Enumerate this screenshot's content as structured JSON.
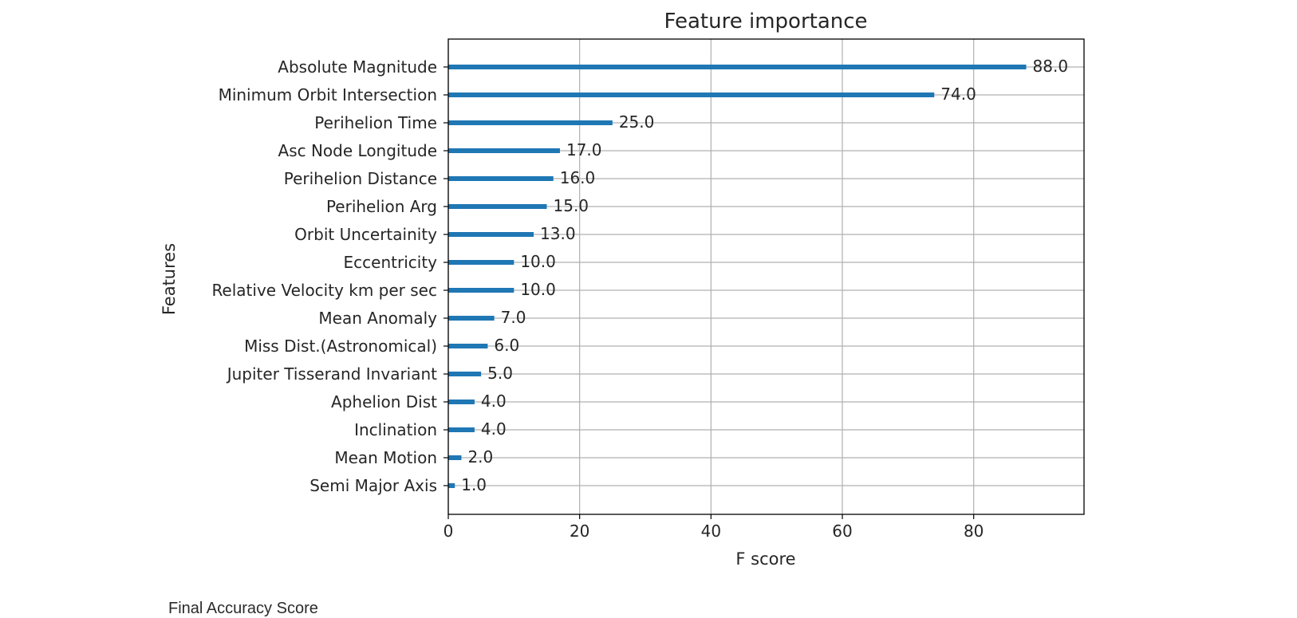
{
  "chart_data": {
    "type": "bar",
    "orientation": "horizontal",
    "title": "Feature importance",
    "xlabel": "F score",
    "ylabel": "Features",
    "categories": [
      "Absolute Magnitude",
      "Minimum Orbit Intersection",
      "Perihelion Time",
      "Asc Node Longitude",
      "Perihelion Distance",
      "Perihelion Arg",
      "Orbit Uncertainity",
      "Eccentricity",
      "Relative Velocity km per sec",
      "Mean Anomaly",
      "Miss Dist.(Astronomical)",
      "Jupiter Tisserand Invariant",
      "Aphelion Dist",
      "Inclination",
      "Mean Motion",
      "Semi Major Axis"
    ],
    "values": [
      88,
      74,
      25,
      17,
      16,
      15,
      13,
      10,
      10,
      7,
      6,
      5,
      4,
      4,
      2,
      1
    ],
    "value_labels": [
      "88.0",
      "74.0",
      "25.0",
      "17.0",
      "16.0",
      "15.0",
      "13.0",
      "10.0",
      "10.0",
      "7.0",
      "6.0",
      "5.0",
      "4.0",
      "4.0",
      "2.0",
      "1.0"
    ],
    "xticks": [
      0,
      20,
      40,
      60,
      80
    ],
    "xlim": [
      0,
      96.8
    ],
    "grid": true,
    "bar_color": "#1f77b4"
  },
  "footer": {
    "text": "Final Accuracy Score"
  }
}
